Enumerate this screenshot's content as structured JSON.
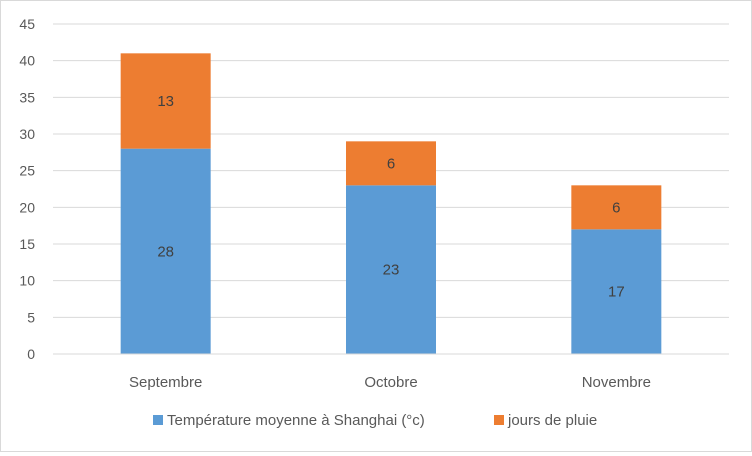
{
  "chart_data": {
    "type": "bar",
    "stacked": true,
    "title": "",
    "xlabel": "",
    "ylabel": "",
    "categories": [
      "Septembre",
      "Octobre",
      "Novembre"
    ],
    "series": [
      {
        "name": "Température moyenne à Shanghai (°c)",
        "values": [
          28,
          23,
          17
        ],
        "color": "#5b9bd5"
      },
      {
        "name": "jours de pluie",
        "values": [
          13,
          6,
          6
        ],
        "color": "#ed7d31"
      }
    ],
    "ylim": [
      0,
      45
    ],
    "yticks": [
      "0",
      "5",
      "10",
      "15",
      "20",
      "25",
      "30",
      "35",
      "40",
      "45"
    ],
    "grid": true,
    "legend": "bottom",
    "data_labels": true
  }
}
